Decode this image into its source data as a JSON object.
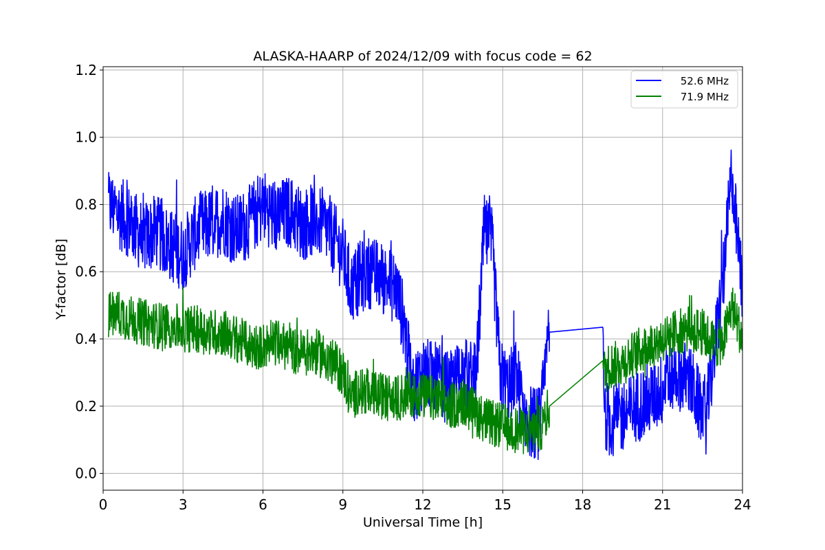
{
  "chart_data": {
    "type": "line",
    "title": "ALASKA-HAARP of 2024/12/09 with focus code = 62",
    "xlabel": "Universal Time [h]",
    "ylabel": "Y-factor [dB]",
    "xlim": [
      0,
      24
    ],
    "ylim": [
      -0.05,
      1.21
    ],
    "xticks": [
      0,
      3,
      6,
      9,
      12,
      15,
      18,
      21,
      24
    ],
    "xtick_labels": [
      "0",
      "3",
      "6",
      "9",
      "12",
      "15",
      "18",
      "21",
      "24"
    ],
    "yticks": [
      0.0,
      0.2,
      0.4,
      0.6,
      0.8,
      1.0,
      1.2
    ],
    "ytick_labels": [
      "0.0",
      "0.2",
      "0.4",
      "0.6",
      "0.8",
      "1.0",
      "1.2"
    ],
    "grid": true,
    "legend_position": "top-right",
    "series": [
      {
        "name": "52.6 MHz",
        "color": "#0000ff",
        "x": [
          0.2,
          0.5,
          1.0,
          1.5,
          2.0,
          2.5,
          3.0,
          3.5,
          4.0,
          4.5,
          5.0,
          5.5,
          6.0,
          6.5,
          7.0,
          7.5,
          8.0,
          8.5,
          9.0,
          9.3,
          9.6,
          10.0,
          10.5,
          11.0,
          11.3,
          11.6,
          12.0,
          12.5,
          13.0,
          13.5,
          14.0,
          14.3,
          14.6,
          14.9,
          15.2,
          15.5,
          15.8,
          16.1,
          16.4,
          16.75,
          18.75,
          18.8,
          19.0,
          19.5,
          20.0,
          20.5,
          21.0,
          21.5,
          22.0,
          22.3,
          22.6,
          23.0,
          23.3,
          23.6,
          23.8,
          24.0
        ],
        "y": [
          0.8,
          0.78,
          0.75,
          0.7,
          0.72,
          0.68,
          0.65,
          0.72,
          0.74,
          0.76,
          0.72,
          0.75,
          0.8,
          0.76,
          0.78,
          0.74,
          0.76,
          0.72,
          0.65,
          0.55,
          0.58,
          0.6,
          0.58,
          0.55,
          0.45,
          0.25,
          0.3,
          0.28,
          0.25,
          0.3,
          0.28,
          0.72,
          0.68,
          0.3,
          0.25,
          0.3,
          0.18,
          0.15,
          0.15,
          0.42,
          0.435,
          0.2,
          0.15,
          0.17,
          0.2,
          0.22,
          0.25,
          0.3,
          0.28,
          0.22,
          0.15,
          0.4,
          0.6,
          0.9,
          0.7,
          0.55
        ]
      },
      {
        "name": "71.9 MHz",
        "color": "#008000",
        "x": [
          0.2,
          0.5,
          1.0,
          1.5,
          2.0,
          2.5,
          3.0,
          3.5,
          4.0,
          4.5,
          5.0,
          5.5,
          6.0,
          6.5,
          7.0,
          7.5,
          8.0,
          8.5,
          9.0,
          9.3,
          9.6,
          10.0,
          10.5,
          11.0,
          11.5,
          12.0,
          12.5,
          13.0,
          13.5,
          14.0,
          14.5,
          15.0,
          15.5,
          16.0,
          16.5,
          16.75,
          18.75,
          18.8,
          19.0,
          19.5,
          20.0,
          20.5,
          21.0,
          21.5,
          22.0,
          22.5,
          23.0,
          23.3,
          23.6,
          23.8,
          24.0
        ],
        "y": [
          0.47,
          0.48,
          0.46,
          0.45,
          0.44,
          0.44,
          0.43,
          0.43,
          0.42,
          0.42,
          0.4,
          0.38,
          0.38,
          0.39,
          0.37,
          0.36,
          0.36,
          0.34,
          0.3,
          0.22,
          0.25,
          0.24,
          0.23,
          0.22,
          0.24,
          0.23,
          0.22,
          0.2,
          0.21,
          0.18,
          0.15,
          0.14,
          0.13,
          0.12,
          0.14,
          0.2,
          0.335,
          0.3,
          0.32,
          0.33,
          0.36,
          0.38,
          0.4,
          0.42,
          0.43,
          0.42,
          0.38,
          0.4,
          0.5,
          0.45,
          0.4
        ]
      }
    ]
  }
}
